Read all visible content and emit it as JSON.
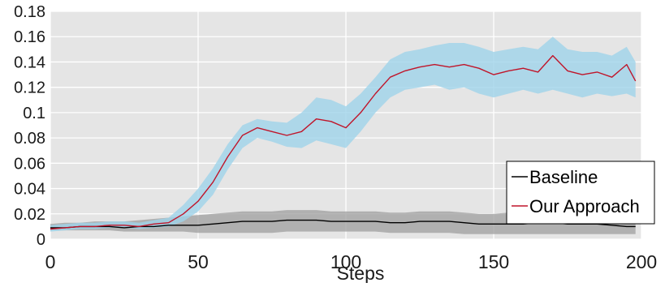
{
  "chart_data": {
    "type": "line",
    "title": "",
    "xlabel": "Steps",
    "ylabel": "",
    "xlim": [
      0,
      200
    ],
    "ylim": [
      0,
      0.18
    ],
    "xticks": [
      0,
      50,
      100,
      150,
      200
    ],
    "xtick_labels": [
      "0",
      "50",
      "100",
      "150",
      "200"
    ],
    "yticks": [
      0,
      0.02,
      0.04,
      0.06,
      0.08,
      0.1,
      0.12,
      0.14,
      0.16,
      0.18
    ],
    "ytick_labels": [
      "0",
      "0.02",
      "0.04",
      "0.06",
      "0.08",
      "0.1",
      "0.12",
      "0.14",
      "0.16",
      "0.18"
    ],
    "grid": true,
    "legend": "bottom-right",
    "colors": {
      "plot_background": "#e5e5e5",
      "grid": "#ffffff",
      "baseline_line": "#000000",
      "baseline_band": "#9e9e9e",
      "approach_line": "#c0152a",
      "approach_band": "#9fd3ea"
    },
    "series": [
      {
        "name": "Baseline",
        "x": [
          0,
          5,
          10,
          15,
          20,
          25,
          30,
          35,
          40,
          45,
          50,
          55,
          60,
          65,
          70,
          75,
          80,
          85,
          90,
          95,
          100,
          105,
          110,
          115,
          120,
          125,
          130,
          135,
          140,
          145,
          150,
          155,
          160,
          165,
          170,
          175,
          180,
          185,
          190,
          195,
          198
        ],
        "values": [
          0.009,
          0.009,
          0.01,
          0.01,
          0.01,
          0.009,
          0.01,
          0.01,
          0.011,
          0.011,
          0.011,
          0.012,
          0.013,
          0.014,
          0.014,
          0.014,
          0.015,
          0.015,
          0.015,
          0.014,
          0.014,
          0.014,
          0.014,
          0.013,
          0.013,
          0.014,
          0.014,
          0.014,
          0.013,
          0.012,
          0.012,
          0.012,
          0.012,
          0.013,
          0.013,
          0.012,
          0.012,
          0.012,
          0.011,
          0.01,
          0.01
        ],
        "lower": [
          0.007,
          0.007,
          0.007,
          0.007,
          0.007,
          0.006,
          0.006,
          0.006,
          0.006,
          0.006,
          0.005,
          0.005,
          0.005,
          0.005,
          0.005,
          0.005,
          0.006,
          0.006,
          0.006,
          0.006,
          0.006,
          0.006,
          0.006,
          0.005,
          0.005,
          0.005,
          0.005,
          0.005,
          0.004,
          0.004,
          0.004,
          0.004,
          0.004,
          0.004,
          0.004,
          0.004,
          0.004,
          0.004,
          0.004,
          0.004,
          0.004
        ],
        "upper": [
          0.012,
          0.013,
          0.013,
          0.014,
          0.014,
          0.014,
          0.015,
          0.016,
          0.017,
          0.018,
          0.019,
          0.02,
          0.021,
          0.022,
          0.022,
          0.022,
          0.023,
          0.023,
          0.023,
          0.022,
          0.022,
          0.022,
          0.022,
          0.021,
          0.021,
          0.022,
          0.022,
          0.022,
          0.021,
          0.02,
          0.02,
          0.021,
          0.021,
          0.022,
          0.022,
          0.021,
          0.021,
          0.021,
          0.02,
          0.019,
          0.019
        ]
      },
      {
        "name": "Our Approach",
        "x": [
          0,
          5,
          10,
          15,
          20,
          25,
          30,
          35,
          40,
          45,
          50,
          55,
          60,
          65,
          70,
          75,
          80,
          85,
          90,
          95,
          100,
          105,
          110,
          115,
          120,
          125,
          130,
          135,
          140,
          145,
          150,
          155,
          160,
          165,
          170,
          175,
          180,
          185,
          190,
          195,
          198
        ],
        "values": [
          0.008,
          0.009,
          0.01,
          0.01,
          0.011,
          0.011,
          0.01,
          0.012,
          0.013,
          0.02,
          0.03,
          0.045,
          0.065,
          0.082,
          0.088,
          0.085,
          0.082,
          0.085,
          0.095,
          0.093,
          0.088,
          0.1,
          0.115,
          0.128,
          0.133,
          0.136,
          0.138,
          0.136,
          0.138,
          0.135,
          0.13,
          0.133,
          0.135,
          0.132,
          0.145,
          0.133,
          0.13,
          0.132,
          0.128,
          0.138,
          0.125
        ],
        "lower": [
          0.006,
          0.007,
          0.008,
          0.008,
          0.009,
          0.009,
          0.008,
          0.009,
          0.01,
          0.014,
          0.022,
          0.035,
          0.055,
          0.072,
          0.08,
          0.077,
          0.073,
          0.072,
          0.078,
          0.075,
          0.072,
          0.085,
          0.1,
          0.112,
          0.118,
          0.12,
          0.122,
          0.118,
          0.12,
          0.115,
          0.112,
          0.115,
          0.118,
          0.115,
          0.118,
          0.115,
          0.112,
          0.115,
          0.113,
          0.115,
          0.112
        ],
        "upper": [
          0.011,
          0.012,
          0.013,
          0.013,
          0.014,
          0.014,
          0.013,
          0.015,
          0.017,
          0.027,
          0.04,
          0.056,
          0.075,
          0.09,
          0.095,
          0.093,
          0.092,
          0.1,
          0.112,
          0.11,
          0.105,
          0.115,
          0.128,
          0.142,
          0.148,
          0.15,
          0.153,
          0.155,
          0.155,
          0.152,
          0.148,
          0.15,
          0.152,
          0.15,
          0.16,
          0.15,
          0.148,
          0.148,
          0.145,
          0.152,
          0.14
        ]
      }
    ]
  }
}
